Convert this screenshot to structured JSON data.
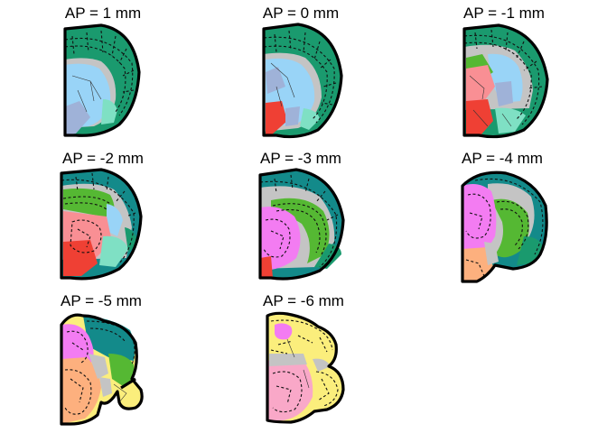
{
  "figure": {
    "panels": [
      {
        "title": "AP = 1 mm"
      },
      {
        "title": "AP = 0 mm"
      },
      {
        "title": "AP = -1 mm"
      },
      {
        "title": "AP = -2 mm"
      },
      {
        "title": "AP = -3 mm"
      },
      {
        "title": "AP = -4 mm"
      },
      {
        "title": "AP = -5 mm"
      },
      {
        "title": "AP = -6 mm"
      }
    ]
  },
  "colors": {
    "cortex_green": "#1a9a6e",
    "cortex_teal": "#138a8a",
    "striatum_blue": "#99d4f7",
    "pallidum_slate": "#9fb2d8",
    "thalamus_pink": "#f98f94",
    "hypothalamus_red": "#ef4034",
    "hippocampus_green": "#55b833",
    "midbrain_magenta": "#f37cf2",
    "orange": "#fdb07e",
    "hindbrain_yellow": "#fbee7c",
    "medulla_pink": "#f9a8c8",
    "aqua": "#7fe0c4",
    "fiber_gray": "#c4c4c4"
  }
}
